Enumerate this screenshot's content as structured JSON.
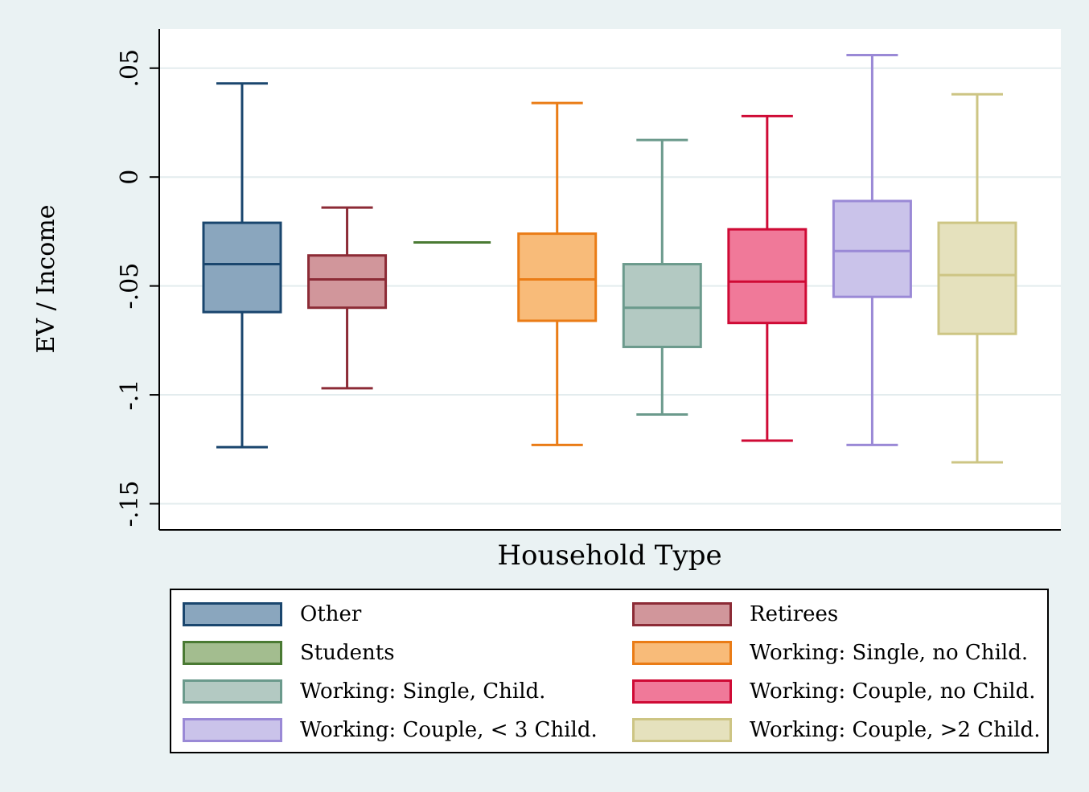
{
  "chart_data": {
    "type": "box",
    "title": "",
    "xlabel": "Household Type",
    "ylabel": "EV / Income",
    "ylim": [
      -0.162,
      0.068
    ],
    "yticks": [
      {
        "value": 0.05,
        "label": ".05"
      },
      {
        "value": 0,
        "label": "0"
      },
      {
        "value": -0.05,
        "label": "-.05"
      },
      {
        "value": -0.1,
        "label": "-.1"
      },
      {
        "value": -0.15,
        "label": "-.15"
      }
    ],
    "grid": true,
    "legend_position": "bottom",
    "series": [
      {
        "name": "Other",
        "min": -0.124,
        "q1": -0.062,
        "median": -0.04,
        "q3": -0.021,
        "max": 0.043,
        "fill": "#8aa6be",
        "stroke": "#1a466e"
      },
      {
        "name": "Retirees",
        "min": -0.097,
        "q1": -0.06,
        "median": -0.047,
        "q3": -0.036,
        "max": -0.014,
        "fill": "#d1969b",
        "stroke": "#8c2b36"
      },
      {
        "name": "Students",
        "min": -0.03,
        "q1": -0.03,
        "median": -0.03,
        "q3": -0.03,
        "max": -0.03,
        "fill": "#a3bd8f",
        "stroke": "#4a7a33"
      },
      {
        "name": "Working: Single, no Child.",
        "min": -0.123,
        "q1": -0.066,
        "median": -0.047,
        "q3": -0.026,
        "max": 0.034,
        "fill": "#f8bb79",
        "stroke": "#ea7c16"
      },
      {
        "name": "Working: Single, Child.",
        "min": -0.109,
        "q1": -0.078,
        "median": -0.06,
        "q3": -0.04,
        "max": 0.017,
        "fill": "#b3c9c2",
        "stroke": "#6b9a8c"
      },
      {
        "name": "Working: Couple, no Child.",
        "min": -0.121,
        "q1": -0.067,
        "median": -0.048,
        "q3": -0.024,
        "max": 0.028,
        "fill": "#f07999",
        "stroke": "#cf0a35"
      },
      {
        "name": "Working: Couple, < 3 Child.",
        "min": -0.123,
        "q1": -0.055,
        "median": -0.034,
        "q3": -0.011,
        "max": 0.056,
        "fill": "#cac3ea",
        "stroke": "#9a89d6"
      },
      {
        "name": "Working: Couple, >2 Child.",
        "min": -0.131,
        "q1": -0.072,
        "median": -0.045,
        "q3": -0.021,
        "max": 0.038,
        "fill": "#e5e1bd",
        "stroke": "#cdc584"
      }
    ]
  }
}
